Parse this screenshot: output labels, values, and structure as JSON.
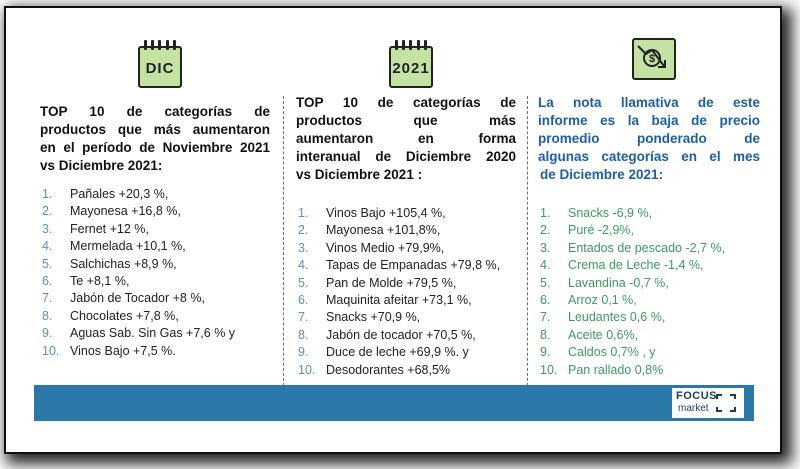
{
  "icons": {
    "left_label": "DIC",
    "middle_label": "2021",
    "right_icon": "price-drop-icon"
  },
  "col1": {
    "heading_lines": [
      "TOP 10 de categorías de",
      "productos que más aumentaron",
      "en el período de Noviembre 2021",
      "vs Diciembre 2021:"
    ],
    "items": [
      {
        "n": "1.",
        "t": "Pañales +20,3 %,"
      },
      {
        "n": "2.",
        "t": "Mayonesa +16,8 %,"
      },
      {
        "n": "3.",
        "t": "Fernet +12 %,"
      },
      {
        "n": "4.",
        "t": "Mermelada +10,1 %,"
      },
      {
        "n": "5.",
        "t": "Salchichas +8,9 %,"
      },
      {
        "n": "6.",
        "t": "Te +8,1 %,"
      },
      {
        "n": "7.",
        "t": "Jabón de Tocador +8 %,"
      },
      {
        "n": "8.",
        "t": "Chocolates +7,8 %,"
      },
      {
        "n": "9.",
        "t": "Aguas Sab. Sin Gas +7,6 % y"
      },
      {
        "n": "10.",
        "t": "Vinos Bajo +7,5 %."
      }
    ]
  },
  "col2": {
    "heading_lines": [
      "TOP 10 de categorías de",
      "productos que más",
      "aumentaron en forma",
      "interanual de Diciembre 2020",
      "vs Diciembre 2021 :"
    ],
    "items": [
      {
        "n": "1.",
        "t": "Vinos Bajo +105,4 %,"
      },
      {
        "n": "2.",
        "t": "Mayonesa +101,8%,"
      },
      {
        "n": "3.",
        "t": "Vinos Medio +79,9%,"
      },
      {
        "n": "4.",
        "t": "Tapas de Empanadas +79,8 %,"
      },
      {
        "n": "5.",
        "t": "Pan de Molde +79,5 %,"
      },
      {
        "n": "6.",
        "t": "Maquinita afeitar +73,1 %,"
      },
      {
        "n": "7.",
        "t": "Snacks +70,9 %,"
      },
      {
        "n": "8.",
        "t": "Jabón de tocador +70,5 %,"
      },
      {
        "n": "9.",
        "t": "Duce de leche +69,9 %. y"
      },
      {
        "n": "10.",
        "t": "Desodorantes +68,5%"
      }
    ]
  },
  "col3": {
    "heading_lines": [
      "La nota llamativa de este",
      "informe es la baja de precio",
      "promedio ponderado de",
      "algunas categorías en el mes",
      "de Diciembre 2021:"
    ],
    "items": [
      {
        "n": "1.",
        "t": "Snacks -6,9 %,"
      },
      {
        "n": "2.",
        "t": "Puré -2,9%,"
      },
      {
        "n": "3.",
        "t": "Entados de pescado -2,7 %,"
      },
      {
        "n": "4.",
        "t": "Crema de Leche -1,4 %,"
      },
      {
        "n": "5.",
        "t": "Lavandina -0,7 %,"
      },
      {
        "n": "6.",
        "t": "Arroz 0,1 %,"
      },
      {
        "n": "7.",
        "t": "Leudantes 0,6 %,"
      },
      {
        "n": "8.",
        "t": "Aceite 0,6%,"
      },
      {
        "n": "9.",
        "t": "Caldos 0,7% , y"
      },
      {
        "n": "10.",
        "t": "Pan rallado 0,8%"
      }
    ]
  },
  "footer": {
    "logo_top": "FOCUS",
    "logo_bottom": "market"
  },
  "colors": {
    "accent_blue": "#2a78aa",
    "heading_blue": "#1d5fa6",
    "green_text": "#3e9a63",
    "icon_green": "#c4e3a3"
  }
}
